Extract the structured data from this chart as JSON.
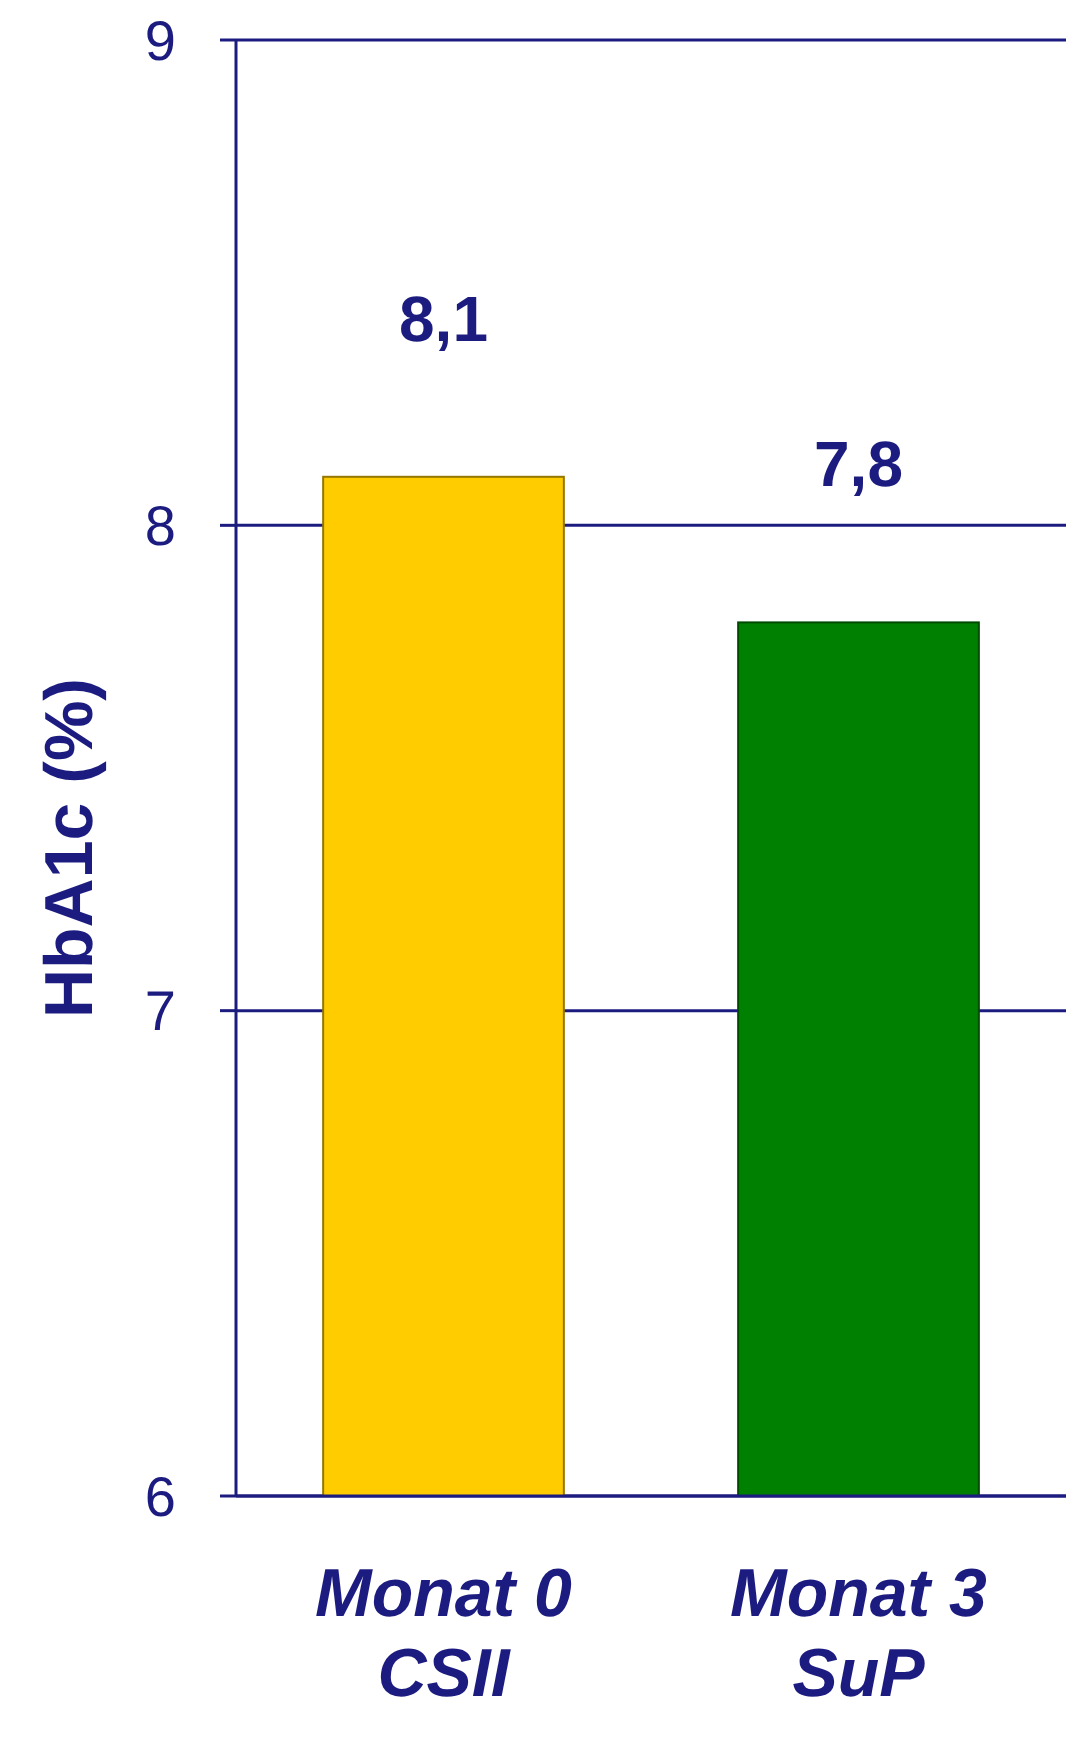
{
  "chart_data": {
    "type": "bar",
    "ylabel": "HbA1c (%)",
    "categories": [
      "Monat 0\nCSII",
      "Monat 3\nSuP"
    ],
    "values": [
      8.1,
      7.8
    ],
    "colors": [
      "#ffcc00",
      "#008000"
    ],
    "value_labels": [
      "8,1",
      "7,8"
    ],
    "ylim": [
      6,
      9
    ],
    "yticks": [
      6,
      7,
      8,
      9
    ],
    "grid": "y"
  }
}
